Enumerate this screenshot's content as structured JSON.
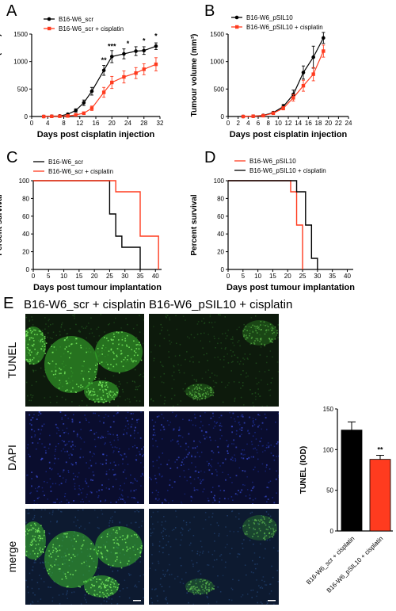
{
  "colors": {
    "black": "#000000",
    "red": "#ff3b1f",
    "green_stain": "#3dbb2f",
    "blue_stain": "#1c2a9a"
  },
  "panel_a": {
    "letter": "A",
    "xlabel": "Days post cisplatin injection",
    "ylabel": "Tumour volume (mm³)",
    "legend": [
      "B16-W6_scr",
      "B16-W6_scr + cisplatin"
    ],
    "stars": [
      {
        "x": 18,
        "y": 840,
        "text": "**"
      },
      {
        "x": 20,
        "y": 1090,
        "text": "***"
      },
      {
        "x": 24,
        "y": 1140,
        "text": "*"
      },
      {
        "x": 28,
        "y": 1190,
        "text": "*"
      },
      {
        "x": 31,
        "y": 1280,
        "text": "*"
      }
    ]
  },
  "panel_b": {
    "letter": "B",
    "xlabel": "Days post cisplatin injection",
    "ylabel": "Tumour volume (mm³)",
    "legend": [
      "B16-W6_pSIL10",
      "B16-W6_pSIL10 + cisplatin"
    ]
  },
  "panel_c": {
    "letter": "C",
    "xlabel": "Days post tumour implantation",
    "ylabel": "Percent survival",
    "legend": [
      "B16-W6_scr",
      "B16-W6_scr + cisplatin"
    ]
  },
  "panel_d": {
    "letter": "D",
    "xlabel": "Days post tumour implantation",
    "ylabel": "Percent survival",
    "legend": [
      "B16-W6_pSIL10",
      "B16-W6_pSIL10 + cisplatin"
    ]
  },
  "panel_e": {
    "letter": "E",
    "col_headers": [
      "B16-W6_scr + cisplatin",
      "B16-W6_pSIL10 + cisplatin"
    ],
    "row_labels": [
      "TUNEL",
      "DAPI",
      "merge"
    ],
    "bar_ylabel": "TUNEL (IOD)",
    "bar_categories": [
      "B16-W6_scr + cisplatin",
      "B16-W6_pSIL10 + cisplatin"
    ],
    "bar_star": "**"
  },
  "chart_data": [
    {
      "type": "line",
      "panel": "A",
      "xlabel": "Days post cisplatin injection",
      "ylabel": "Tumour volume (mm³)",
      "xlim": [
        0,
        32
      ],
      "ylim": [
        0,
        1500
      ],
      "xticks": [
        0,
        4,
        8,
        12,
        16,
        20,
        24,
        28,
        32
      ],
      "yticks": [
        0,
        500,
        1000,
        1500
      ],
      "series": [
        {
          "name": "B16-W6_scr",
          "color": "#000000",
          "marker": "circle",
          "x": [
            3,
            5,
            7,
            9,
            11,
            13,
            15,
            18,
            20,
            23,
            26,
            28,
            31
          ],
          "y": [
            0,
            5,
            10,
            40,
            110,
            250,
            460,
            840,
            1090,
            1140,
            1190,
            1200,
            1280
          ],
          "err": [
            0,
            3,
            5,
            15,
            30,
            50,
            70,
            90,
            110,
            90,
            80,
            70,
            60
          ]
        },
        {
          "name": "B16-W6_scr + cisplatin",
          "color": "#ff3b1f",
          "marker": "square",
          "x": [
            3,
            5,
            7,
            9,
            11,
            13,
            15,
            18,
            20,
            23,
            26,
            28,
            31
          ],
          "y": [
            0,
            3,
            5,
            10,
            30,
            60,
            150,
            440,
            620,
            720,
            790,
            860,
            950
          ],
          "err": [
            0,
            2,
            3,
            5,
            10,
            20,
            40,
            90,
            110,
            110,
            100,
            100,
            120
          ]
        }
      ]
    },
    {
      "type": "line",
      "panel": "B",
      "xlabel": "Days post cisplatin injection",
      "ylabel": "Tumour volume (mm³)",
      "xlim": [
        0,
        24
      ],
      "ylim": [
        0,
        1500
      ],
      "xticks": [
        0,
        2,
        4,
        6,
        8,
        10,
        12,
        14,
        16,
        18,
        20,
        22,
        24
      ],
      "yticks": [
        0,
        500,
        1000,
        1500
      ],
      "series": [
        {
          "name": "B16-W6_pSIL10",
          "color": "#000000",
          "marker": "circle",
          "x": [
            3,
            5,
            7,
            9,
            11,
            13,
            15,
            17,
            19
          ],
          "y": [
            0,
            5,
            20,
            70,
            180,
            400,
            800,
            1080,
            1430
          ],
          "err": [
            0,
            5,
            10,
            20,
            40,
            80,
            120,
            200,
            100
          ]
        },
        {
          "name": "B16-W6_pSIL10 + cisplatin",
          "color": "#ff3b1f",
          "marker": "square",
          "x": [
            3,
            5,
            7,
            9,
            11,
            13,
            15,
            17,
            19
          ],
          "y": [
            0,
            5,
            15,
            60,
            150,
            340,
            560,
            770,
            1190
          ],
          "err": [
            0,
            5,
            10,
            20,
            30,
            60,
            100,
            120,
            110
          ]
        }
      ]
    },
    {
      "type": "line",
      "panel": "C",
      "step": true,
      "xlabel": "Days post tumour implantation",
      "ylabel": "Percent survival",
      "xlim": [
        0,
        42
      ],
      "ylim": [
        0,
        100
      ],
      "xticks": [
        0,
        5,
        10,
        15,
        20,
        25,
        30,
        35,
        40
      ],
      "yticks": [
        0,
        20,
        40,
        60,
        80,
        100
      ],
      "series": [
        {
          "name": "B16-W6_scr",
          "color": "#000000",
          "x": [
            0,
            25,
            25,
            27,
            27,
            29,
            29,
            35,
            35
          ],
          "y": [
            100,
            100,
            62.5,
            62.5,
            37.5,
            37.5,
            25,
            25,
            0
          ]
        },
        {
          "name": "B16-W6_scr + cisplatin",
          "color": "#ff3b1f",
          "x": [
            0,
            27,
            27,
            35,
            35,
            41,
            41
          ],
          "y": [
            100,
            100,
            87.5,
            87.5,
            37.5,
            37.5,
            0
          ]
        }
      ]
    },
    {
      "type": "line",
      "panel": "D",
      "step": true,
      "xlabel": "Days post tumour implantation",
      "ylabel": "Percent survival",
      "xlim": [
        0,
        42
      ],
      "ylim": [
        0,
        100
      ],
      "xticks": [
        0,
        5,
        10,
        15,
        20,
        25,
        30,
        35,
        40
      ],
      "yticks": [
        0,
        20,
        40,
        60,
        80,
        100
      ],
      "series": [
        {
          "name": "B16-W6_pSIL10",
          "color": "#ff3b1f",
          "x": [
            0,
            21,
            21,
            23,
            23,
            25,
            25
          ],
          "y": [
            100,
            100,
            87.5,
            87.5,
            50,
            50,
            0
          ]
        },
        {
          "name": "B16-W6_pSIL10 + cisplatin",
          "color": "#000000",
          "x": [
            0,
            23,
            23,
            26,
            26,
            28,
            28,
            30,
            30
          ],
          "y": [
            100,
            100,
            87.5,
            87.5,
            50,
            50,
            12.5,
            12.5,
            0
          ]
        }
      ]
    },
    {
      "type": "bar",
      "panel": "E",
      "ylabel": "TUNEL (IOD)",
      "categories": [
        "B16-W6_scr + cisplatin",
        "B16-W6_pSIL10 + cisplatin"
      ],
      "values": [
        124,
        88
      ],
      "err": [
        10,
        5
      ],
      "colors": [
        "#000000",
        "#ff3b1f"
      ],
      "ylim": [
        0,
        150
      ],
      "yticks": [
        0,
        50,
        100,
        150
      ]
    }
  ]
}
